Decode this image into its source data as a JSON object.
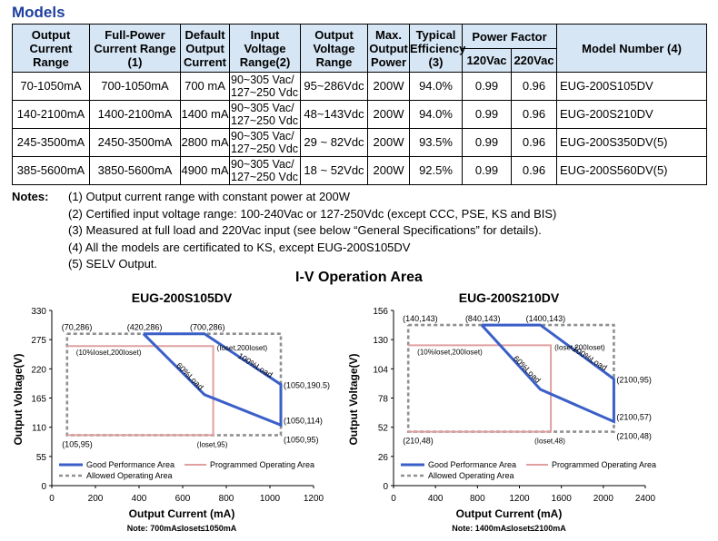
{
  "heading": "Models",
  "table": {
    "headers": {
      "output_current_range": "Output Current Range",
      "full_power_current_range": "Full-Power Current Range (1)",
      "default_output_current": "Default Output Current",
      "input_voltage_range": "Input Voltage Range(2)",
      "output_voltage_range": "Output Voltage Range",
      "max_output_power": "Max. Output Power",
      "typical_efficiency": "Typical Efficiency (3)",
      "power_factor": "Power Factor",
      "pf_120": "120Vac",
      "pf_220": "220Vac",
      "model_number": "Model Number (4)"
    },
    "rows": [
      {
        "current_range": "70-1050mA",
        "full_power": "700-1050mA",
        "default": "700 mA",
        "vin_1": "90~305 Vac/",
        "vin_2": "127~250 Vdc",
        "vout": "95~286Vdc",
        "power": "200W",
        "eff": "94.0%",
        "pf120": "0.99",
        "pf220": "0.96",
        "model": "EUG-200S105DV"
      },
      {
        "current_range": "140-2100mA",
        "full_power": "1400-2100mA",
        "default": "1400 mA",
        "vin_1": "90~305 Vac/",
        "vin_2": "127~250 Vdc",
        "vout": "48~143Vdc",
        "power": "200W",
        "eff": "94.0%",
        "pf120": "0.99",
        "pf220": "0.96",
        "model": "EUG-200S210DV"
      },
      {
        "current_range": "245-3500mA",
        "full_power": "2450-3500mA",
        "default": "2800 mA",
        "vin_1": "90~305 Vac/",
        "vin_2": "127~250 Vdc",
        "vout": "29 ~ 82Vdc",
        "power": "200W",
        "eff": "93.5%",
        "pf120": "0.99",
        "pf220": "0.96",
        "model": "EUG-200S350DV(5)"
      },
      {
        "current_range": "385-5600mA",
        "full_power": "3850-5600mA",
        "default": "4900 mA",
        "vin_1": "90~305 Vac/",
        "vin_2": "127~250 Vdc",
        "vout": "18 ~ 52Vdc",
        "power": "200W",
        "eff": "92.5%",
        "pf120": "0.99",
        "pf220": "0.96",
        "model": "EUG-200S560DV(5)"
      }
    ]
  },
  "notes": {
    "label": "Notes:",
    "items": [
      "(1) Output current range with constant power at 200W",
      "(2) Certified input voltage range: 100-240Vac or 127-250Vdc (except CCC, PSE, KS and BIS)",
      "(3) Measured at full load and 220Vac input (see below “General Specifications” for details).",
      "(4) All the models are certificated to KS, except EUG-200S105DV",
      "(5) SELV Output."
    ]
  },
  "iv_title": "I-V Operation Area",
  "colors": {
    "heading": "#1f3f9f",
    "header_bg": "#d7e6f5",
    "good_performance": "#3a5fc8",
    "programmed": "#e0a0a0",
    "allowed": "#909090"
  },
  "chart_data": [
    {
      "type": "line",
      "title": "EUG-200S105DV",
      "xlabel": "Output Current (mA)",
      "ylabel": "Output Voltage(V)",
      "note": "Note:  700mA≤Ioset≤1050mA",
      "xlim": [
        0,
        1200
      ],
      "ylim": [
        0,
        330
      ],
      "x_ticks": [
        0,
        200,
        400,
        600,
        800,
        1000,
        1200
      ],
      "y_ticks": [
        0,
        55,
        110,
        165,
        220,
        275,
        330
      ],
      "legend": {
        "good": "Good Performance Area",
        "allowed": "Allowed Operating Area",
        "programmed": "Programmed Operating Area"
      },
      "series": {
        "allowed": [
          [
            70,
            286
          ],
          [
            1050,
            286
          ],
          [
            1050,
            95
          ],
          [
            105,
            95
          ],
          [
            70,
            95
          ],
          [
            70,
            286
          ]
        ],
        "good": [
          [
            420,
            286
          ],
          [
            700,
            286
          ],
          [
            1050,
            190.5
          ],
          [
            1050,
            114
          ],
          [
            700,
            171.4
          ],
          [
            420,
            286
          ]
        ],
        "programmed": [
          [
            70,
            263
          ],
          [
            740,
            263
          ],
          [
            740,
            95
          ],
          [
            70,
            95
          ]
        ]
      },
      "labels": {
        "p1": "(70,286)",
        "p2": "(420,286)",
        "p3": "(700,286)",
        "p4": "(Ioset,200Ioset)",
        "p5": "(10%Ioset,200Ioset)",
        "p6": "(1050,190.5)",
        "p7": "(1050,114)",
        "p8": "(1050,95)",
        "p9": "(105,95)",
        "p10": "(Ioset,95)",
        "load100": "100%Load",
        "load60": "60%Load"
      }
    },
    {
      "type": "line",
      "title": "EUG-200S210DV",
      "xlabel": "Output Current (mA)",
      "ylabel": "Output Voltage(V)",
      "note": "Note:  1400mA≤Ioset≤2100mA",
      "xlim": [
        0,
        2400
      ],
      "ylim": [
        0,
        156
      ],
      "x_ticks": [
        0,
        400,
        800,
        1200,
        1600,
        2000,
        2400
      ],
      "y_ticks": [
        0,
        26,
        52,
        78,
        104,
        130,
        156
      ],
      "legend": {
        "good": "Good Performance Area",
        "allowed": "Allowed Operating Area",
        "programmed": "Programmed Operating Area"
      },
      "series": {
        "allowed": [
          [
            140,
            143
          ],
          [
            2100,
            143
          ],
          [
            2100,
            48
          ],
          [
            210,
            48
          ],
          [
            140,
            48
          ],
          [
            140,
            143
          ]
        ],
        "good": [
          [
            840,
            143
          ],
          [
            1400,
            143
          ],
          [
            2100,
            95
          ],
          [
            2100,
            57
          ],
          [
            1400,
            85.7
          ],
          [
            840,
            143
          ]
        ],
        "programmed": [
          [
            140,
            125
          ],
          [
            1500,
            125
          ],
          [
            1500,
            48
          ],
          [
            140,
            48
          ]
        ]
      },
      "labels": {
        "p1": "(140,143)",
        "p2": "(840,143)",
        "p3": "(1400,143)",
        "p4": "(Ioset,200Ioset)",
        "p5": "(10%Ioset,200Ioset)",
        "p6": "(2100,95)",
        "p7": "(2100,57)",
        "p8": "(2100,48)",
        "p9": "(210,48)",
        "p10": "(Ioset,48)",
        "load100": "100%Load",
        "load60": "60%Load"
      }
    }
  ]
}
